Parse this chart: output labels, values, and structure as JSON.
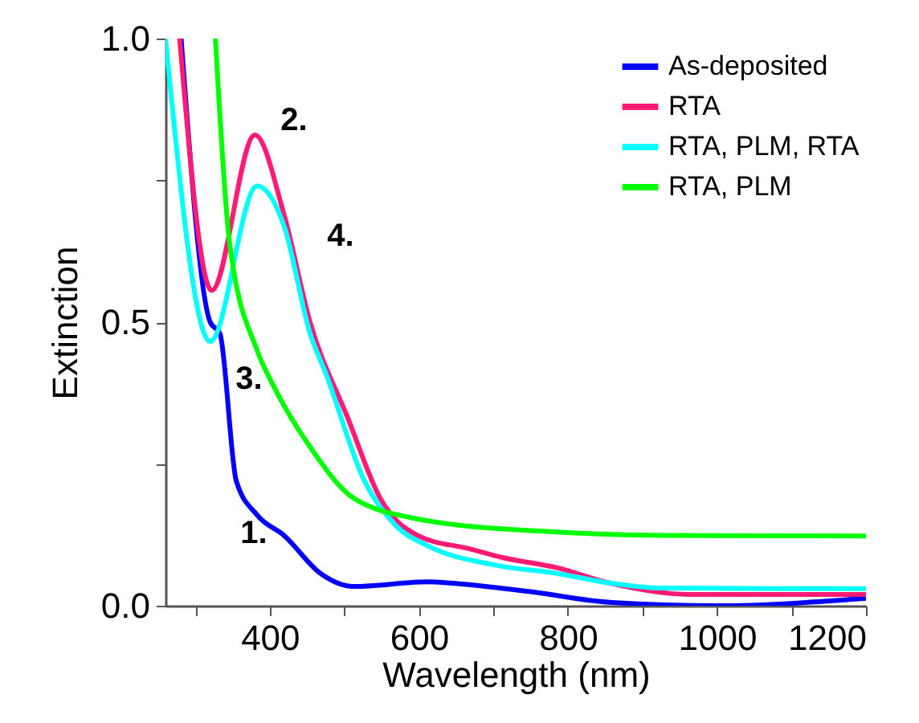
{
  "chart_data": {
    "type": "line",
    "xlabel": "Wavelength (nm)",
    "ylabel": "Extinction",
    "xlim": [
      260,
      1200
    ],
    "ylim": [
      0,
      1
    ],
    "xticks": [
      {
        "value": 300,
        "label": null
      },
      400,
      {
        "value": 500,
        "label": null
      },
      600,
      {
        "value": 700,
        "label": null
      },
      800,
      {
        "value": 900,
        "label": null
      },
      1000,
      {
        "value": 1100,
        "label": null
      },
      1200
    ],
    "yticks": [
      {
        "value": 0,
        "label": "0.0"
      },
      {
        "value": 0.25,
        "label": null
      },
      {
        "value": 0.5,
        "label": "0.5"
      },
      {
        "value": 0.75,
        "label": null
      },
      {
        "value": 1,
        "label": "1.0"
      }
    ],
    "grid": false,
    "legend": "top right",
    "marker": "none",
    "line_style": "solid",
    "series": [
      {
        "name": "As-deposited",
        "color": "#0000ff",
        "x": [
          281,
          320,
          333,
          355,
          383,
          419,
          469,
          512,
          613,
          641,
          748,
          856,
          1000,
          1200
        ],
        "values": [
          1.0,
          0.5,
          0.48,
          0.22,
          0.16,
          0.124,
          0.056,
          0.034,
          0.042,
          0.04,
          0.025,
          0.006,
          0.0,
          0.013
        ]
      },
      {
        "name": "RTA",
        "color": "#ff1a75",
        "x": [
          279,
          322,
          380,
          419,
          454,
          505,
          548,
          598,
          669,
          712,
          785,
          856,
          963,
          1200
        ],
        "values": [
          1.0,
          0.556,
          0.83,
          0.69,
          0.5,
          0.33,
          0.19,
          0.124,
          0.1,
          0.085,
          0.067,
          0.04,
          0.02,
          0.02
        ]
      },
      {
        "name": "RTA, PLM, RTA",
        "color": "#00ffff",
        "x": [
          260,
          320,
          383,
          419,
          454,
          475,
          527,
          570,
          613,
          705,
          785,
          856,
          927,
          1200
        ],
        "values": [
          1.0,
          0.466,
          0.74,
          0.67,
          0.48,
          0.41,
          0.22,
          0.14,
          0.105,
          0.071,
          0.057,
          0.04,
          0.031,
          0.03
        ]
      },
      {
        "name": "RTA, PLM",
        "color": "#00ff00",
        "x": [
          327,
          346,
          383,
          404,
          454,
          512,
          598,
          641,
          785,
          927,
          1200
        ],
        "values": [
          1.0,
          0.64,
          0.45,
          0.39,
          0.28,
          0.19,
          0.153,
          0.144,
          0.13,
          0.124,
          0.123
        ]
      }
    ],
    "annotations": [
      "1.",
      "2.",
      "3.",
      "4."
    ]
  }
}
